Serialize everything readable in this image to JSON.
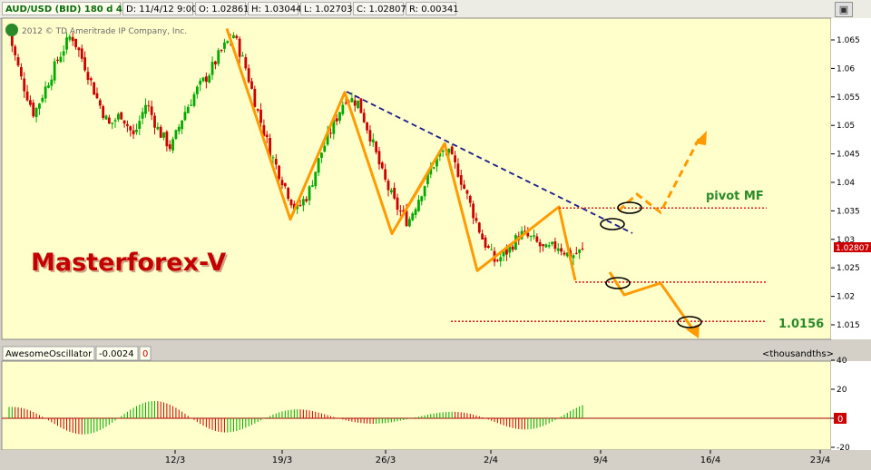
{
  "header": {
    "symbol": "AUD/USD (BID) 180 d 4h",
    "date": "D: 11/4/12 9:00",
    "open": "O: 1.02861",
    "high": "H: 1.03044",
    "low": "L: 1.02703",
    "close": "C: 1.02807",
    "range": "R: 0.00341",
    "camera_icon": "camera-icon"
  },
  "copyright": "2012 © TD Ameritrade IP Company, Inc.",
  "watermark": "Masterforex-V",
  "annotations": {
    "pivot_label": "pivot MF",
    "target_label": "1.0156"
  },
  "price_tag": "1.02807",
  "oscillator": {
    "name": "AwesomeOscillator",
    "value": "-0.0024",
    "flag": "0",
    "units": "<thousandths>",
    "zero_tag": "0"
  },
  "colors": {
    "up": "#00aa00",
    "down": "#cc0000",
    "zigzag": "#ff9a00",
    "trendline": "#1a1a8c",
    "levels": "#dd2222",
    "panel_bg": "#ffffcc"
  },
  "chart_data": [
    {
      "type": "candlestick",
      "title": "AUD/USD (BID) 180 d 4h",
      "xlabel": "",
      "ylabel": "",
      "x_ticks": [
        "12/3",
        "19/3",
        "26/3",
        "2/4",
        "9/4",
        "16/4",
        "23/4"
      ],
      "y_ticks": [
        1.015,
        1.02,
        1.025,
        1.03,
        1.035,
        1.04,
        1.045,
        1.05,
        1.055,
        1.06,
        1.065
      ],
      "ylim": [
        1.013,
        1.068
      ],
      "grid": false,
      "close_path": [
        1.066,
        1.058,
        1.052,
        1.057,
        1.062,
        1.066,
        1.061,
        1.055,
        1.05,
        1.052,
        1.048,
        1.054,
        1.049,
        1.046,
        1.052,
        1.056,
        1.059,
        1.063,
        1.066,
        1.06,
        1.052,
        1.045,
        1.04,
        1.035,
        1.038,
        1.045,
        1.05,
        1.055,
        1.054,
        1.048,
        1.041,
        1.036,
        1.033,
        1.038,
        1.043,
        1.046,
        1.042,
        1.036,
        1.03,
        1.026,
        1.028,
        1.031,
        1.03,
        1.028,
        1.029,
        1.027,
        1.028
      ],
      "pivot_level": 1.0355,
      "support_level": 1.0225,
      "target_level": 1.0156,
      "zigzag": [
        [
          1.067,
          ""
        ],
        [
          1.0335,
          ""
        ],
        [
          1.0558,
          ""
        ],
        [
          1.031,
          ""
        ],
        [
          1.0468,
          ""
        ],
        [
          1.0245,
          ""
        ],
        [
          1.0357,
          ""
        ],
        [
          1.0228,
          ""
        ]
      ],
      "last_price": 1.02807
    },
    {
      "type": "bar",
      "title": "AwesomeOscillator",
      "y_ticks": [
        40,
        20,
        0,
        -20
      ],
      "ylim": [
        -22,
        42
      ],
      "value": -0.0024
    }
  ]
}
